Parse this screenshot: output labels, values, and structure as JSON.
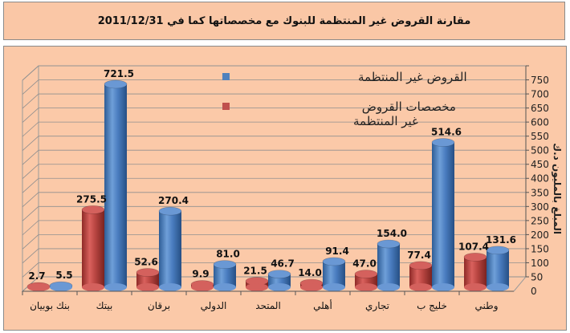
{
  "title": "مقارنة القروض غير المنتظمة للبنوك مع مخصصاتها كما في 2011/12/31",
  "chart_data": {
    "type": "bar",
    "categories": [
      "وطني",
      "خليج ب",
      "تجاري",
      "أهلي",
      "المتحد",
      "الدولي",
      "برقان",
      "بيتك",
      "بنك بوبيان"
    ],
    "series": [
      {
        "name": "القروض غير المنتظمة",
        "color": "#4f81bd",
        "values": [
          131.6,
          514.6,
          154.0,
          91.4,
          46.7,
          81.0,
          270.4,
          721.5,
          5.5
        ]
      },
      {
        "name": "مخصصات القروض غير المنتظمة",
        "color": "#c0504d",
        "values": [
          107.4,
          77.4,
          47.0,
          14.0,
          21.5,
          9.9,
          52.6,
          275.5,
          2.7
        ]
      }
    ],
    "value_labels": {
      "loans": [
        "131.6",
        "514.6",
        "154.0",
        "91.4",
        "46.7",
        "81.0",
        "270.4",
        "721.5",
        "5.5"
      ],
      "provisions": [
        "107.4",
        "77.4",
        "47.0",
        "14.0",
        "21.5",
        "9.9",
        "52.6",
        "275.5",
        "2.7"
      ]
    },
    "ylabel": "المبلغ بالمليون د.ك",
    "yticks": [
      "0",
      "50",
      "100",
      "150",
      "200",
      "250",
      "300",
      "350",
      "400",
      "450",
      "500",
      "550",
      "600",
      "650",
      "700",
      "750"
    ],
    "ylim": [
      0,
      750
    ],
    "grid": true,
    "legend_position": "top-center",
    "y_axis_side": "right"
  }
}
